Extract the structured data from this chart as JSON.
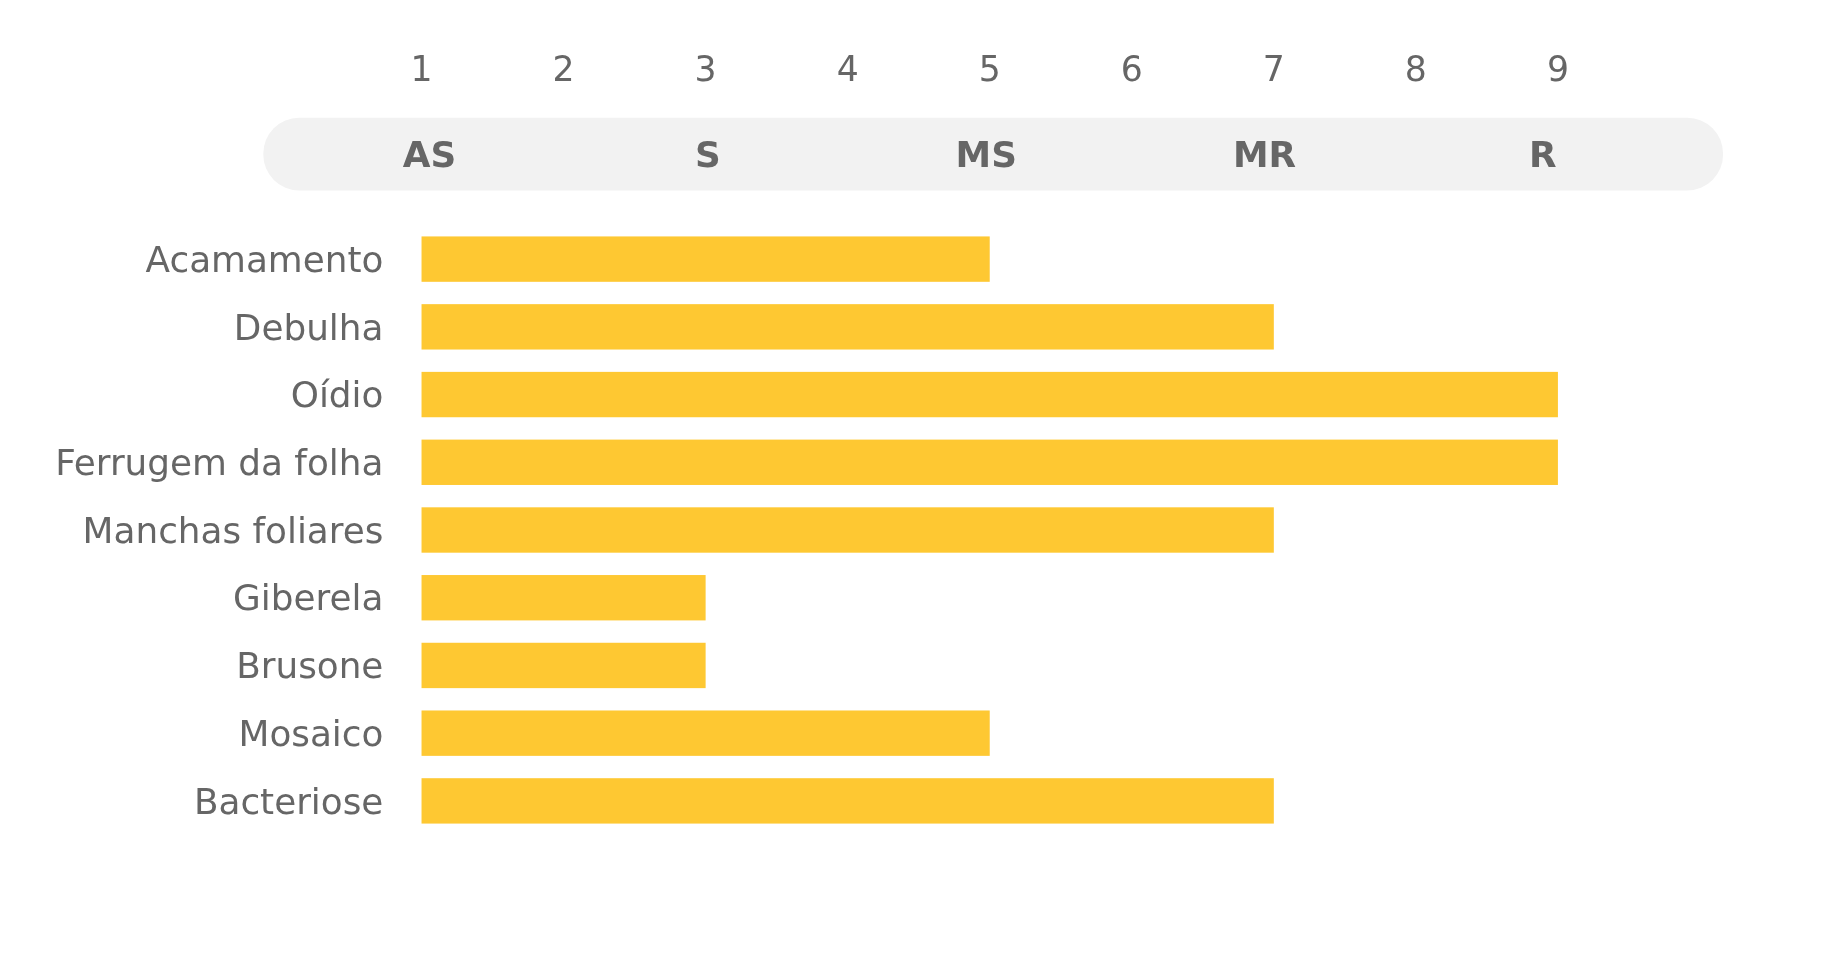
{
  "chart_data": {
    "type": "bar",
    "orientation": "horizontal",
    "categories": [
      "Acamamento",
      "Debulha",
      "Oídio",
      "Ferrugem da folha",
      "Manchas foliares",
      "Giberela",
      "Brusone",
      "Mosaico",
      "Bacteriose"
    ],
    "values": [
      5,
      7,
      9,
      9,
      7,
      3,
      3,
      5,
      7
    ],
    "color": "#fec832",
    "xlim": [
      1,
      9
    ],
    "xticks": [
      1,
      2,
      3,
      4,
      5,
      6,
      7,
      8,
      9
    ],
    "annotations": [
      "AS",
      "S",
      "MS",
      "MR",
      "R"
    ]
  }
}
